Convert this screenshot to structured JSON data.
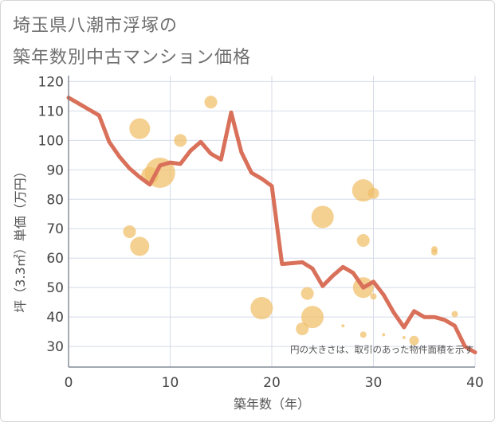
{
  "title_line1": "埼玉県八潮市浮塚の",
  "title_line2": "築年数別中古マンション価格",
  "chart_data": {
    "type": "line+bubble",
    "xlabel": "築年数（年）",
    "ylabel": "坪（3.3㎡）単価（万円）",
    "note": "円の大きさは、取引のあった物件面積を示す",
    "xlim": [
      0,
      40
    ],
    "ylim": [
      23,
      122
    ],
    "xticks": [
      0,
      10,
      20,
      30,
      40
    ],
    "yticks": [
      30,
      40,
      50,
      60,
      70,
      80,
      90,
      100,
      110,
      120
    ],
    "grid": true,
    "colors": {
      "line": "#d9705a",
      "bubble": "#f0c06c"
    },
    "line": {
      "x": [
        0,
        1,
        2,
        3,
        4,
        5,
        6,
        7,
        8,
        9,
        10,
        11,
        12,
        13,
        14,
        15,
        16,
        17,
        18,
        19,
        20,
        21,
        22,
        23,
        24,
        25,
        26,
        27,
        28,
        29,
        30,
        31,
        32,
        33,
        34,
        35,
        36,
        37,
        38,
        39,
        40
      ],
      "y": [
        114.5,
        112.5,
        110.5,
        108.5,
        99.5,
        94.5,
        90.5,
        87.5,
        85.0,
        91.5,
        92.5,
        92.0,
        96.5,
        99.5,
        95.5,
        93.5,
        109.5,
        96.0,
        89.0,
        87.0,
        84.5,
        58.0,
        58.3,
        58.6,
        56.5,
        50.5,
        54.0,
        57.0,
        55.0,
        50.0,
        52.0,
        47.5,
        41.5,
        36.5,
        42.0,
        40.0,
        40.0,
        39.0,
        37.0,
        30.0,
        28.0
      ]
    },
    "bubbles": [
      {
        "x": 7,
        "y": 104,
        "size": 13
      },
      {
        "x": 9,
        "y": 89,
        "size": 19
      },
      {
        "x": 8,
        "y": 88,
        "size": 11
      },
      {
        "x": 11,
        "y": 100,
        "size": 8
      },
      {
        "x": 14,
        "y": 113,
        "size": 8
      },
      {
        "x": 6,
        "y": 69,
        "size": 8
      },
      {
        "x": 7,
        "y": 64,
        "size": 12
      },
      {
        "x": 19,
        "y": 43,
        "size": 14
      },
      {
        "x": 23,
        "y": 36,
        "size": 8
      },
      {
        "x": 23.5,
        "y": 48,
        "size": 8
      },
      {
        "x": 24,
        "y": 40,
        "size": 14
      },
      {
        "x": 25,
        "y": 74,
        "size": 14
      },
      {
        "x": 27,
        "y": 37,
        "size": 2
      },
      {
        "x": 29,
        "y": 83,
        "size": 14
      },
      {
        "x": 30,
        "y": 82,
        "size": 7
      },
      {
        "x": 29,
        "y": 66,
        "size": 8
      },
      {
        "x": 29,
        "y": 50,
        "size": 13
      },
      {
        "x": 30,
        "y": 47,
        "size": 4
      },
      {
        "x": 29,
        "y": 34,
        "size": 4
      },
      {
        "x": 31,
        "y": 34,
        "size": 2
      },
      {
        "x": 33,
        "y": 33,
        "size": 2
      },
      {
        "x": 34,
        "y": 32,
        "size": 6
      },
      {
        "x": 36,
        "y": 63,
        "size": 4
      },
      {
        "x": 36,
        "y": 62,
        "size": 4
      },
      {
        "x": 38,
        "y": 41,
        "size": 4
      }
    ]
  }
}
